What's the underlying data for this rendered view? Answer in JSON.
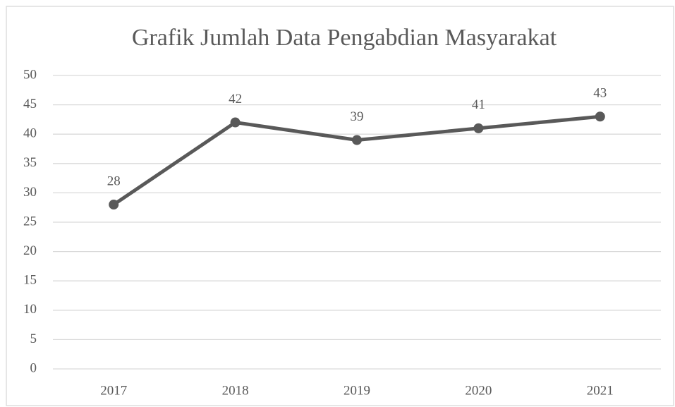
{
  "chart_data": {
    "type": "line",
    "title": "Grafik Jumlah Data Pengabdian Masyarakat",
    "categories": [
      "2017",
      "2018",
      "2019",
      "2020",
      "2021"
    ],
    "values": [
      28,
      42,
      39,
      41,
      43
    ],
    "color": "#595959",
    "ylim": [
      0,
      50
    ],
    "yticks": [
      0,
      5,
      10,
      15,
      20,
      25,
      30,
      35,
      40,
      45,
      50
    ],
    "grid": true
  }
}
